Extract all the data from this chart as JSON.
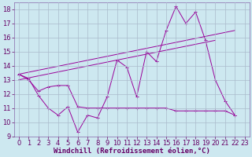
{
  "background_color": "#cde8f0",
  "grid_color": "#aabbcc",
  "line_color": "#990099",
  "xlim": [
    -0.5,
    23.5
  ],
  "ylim": [
    9,
    18.5
  ],
  "xlabel": "Windchill (Refroidissement éolien,°C)",
  "xlabel_fontsize": 6.5,
  "xticks": [
    0,
    1,
    2,
    3,
    4,
    5,
    6,
    7,
    8,
    9,
    10,
    11,
    12,
    13,
    14,
    15,
    16,
    17,
    18,
    19,
    20,
    21,
    22,
    23
  ],
  "yticks": [
    9,
    10,
    11,
    12,
    13,
    14,
    15,
    16,
    17,
    18
  ],
  "tick_fontsize": 6,
  "series1_x": [
    0,
    1,
    2,
    3,
    4,
    5,
    6,
    7,
    8,
    9,
    10,
    11,
    12,
    13,
    14,
    15,
    16,
    17,
    18,
    19,
    20,
    21,
    22
  ],
  "series1_y": [
    13.4,
    13.1,
    11.9,
    11.0,
    10.5,
    11.1,
    9.3,
    10.5,
    10.3,
    11.8,
    14.4,
    13.9,
    11.8,
    15.0,
    14.3,
    16.5,
    18.2,
    17.0,
    17.8,
    15.8,
    13.0,
    11.5,
    10.5
  ],
  "series2_x": [
    0,
    1,
    2,
    3,
    4,
    5,
    6,
    7,
    8,
    9,
    10,
    11,
    12,
    13,
    14,
    15,
    16,
    17,
    18,
    19,
    20,
    21,
    22
  ],
  "series2_y": [
    13.4,
    13.0,
    12.2,
    12.5,
    12.6,
    12.6,
    11.1,
    11.0,
    11.0,
    11.0,
    11.0,
    11.0,
    11.0,
    11.0,
    11.0,
    11.0,
    10.8,
    10.8,
    10.8,
    10.8,
    10.8,
    10.8,
    10.5
  ],
  "series3_x": [
    0,
    22
  ],
  "series3_y": [
    13.4,
    16.5
  ],
  "series4_x": [
    0,
    20
  ],
  "series4_y": [
    13.0,
    15.8
  ]
}
